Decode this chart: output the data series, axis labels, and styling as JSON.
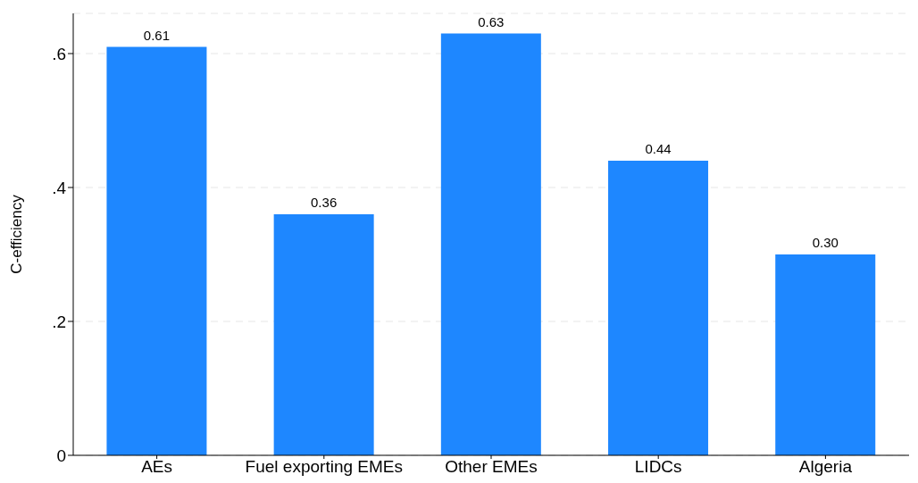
{
  "chart_data": {
    "type": "bar",
    "ylabel": "C-efficiency",
    "categories": [
      "AEs",
      "Fuel exporting EMEs",
      "Other EMEs",
      "LIDCs",
      "Algeria"
    ],
    "values": [
      0.61,
      0.36,
      0.63,
      0.44,
      0.3
    ],
    "value_labels": [
      "0.61",
      "0.36",
      "0.63",
      "0.44",
      "0.30"
    ],
    "color": "#1e87ff",
    "ylim": [
      0,
      0.66
    ],
    "yticks": [
      {
        "value": 0,
        "label": "0"
      },
      {
        "value": 0.2,
        "label": ".2"
      },
      {
        "value": 0.4,
        "label": ".4"
      },
      {
        "value": 0.6,
        "label": ".6"
      }
    ],
    "grid": "y"
  }
}
